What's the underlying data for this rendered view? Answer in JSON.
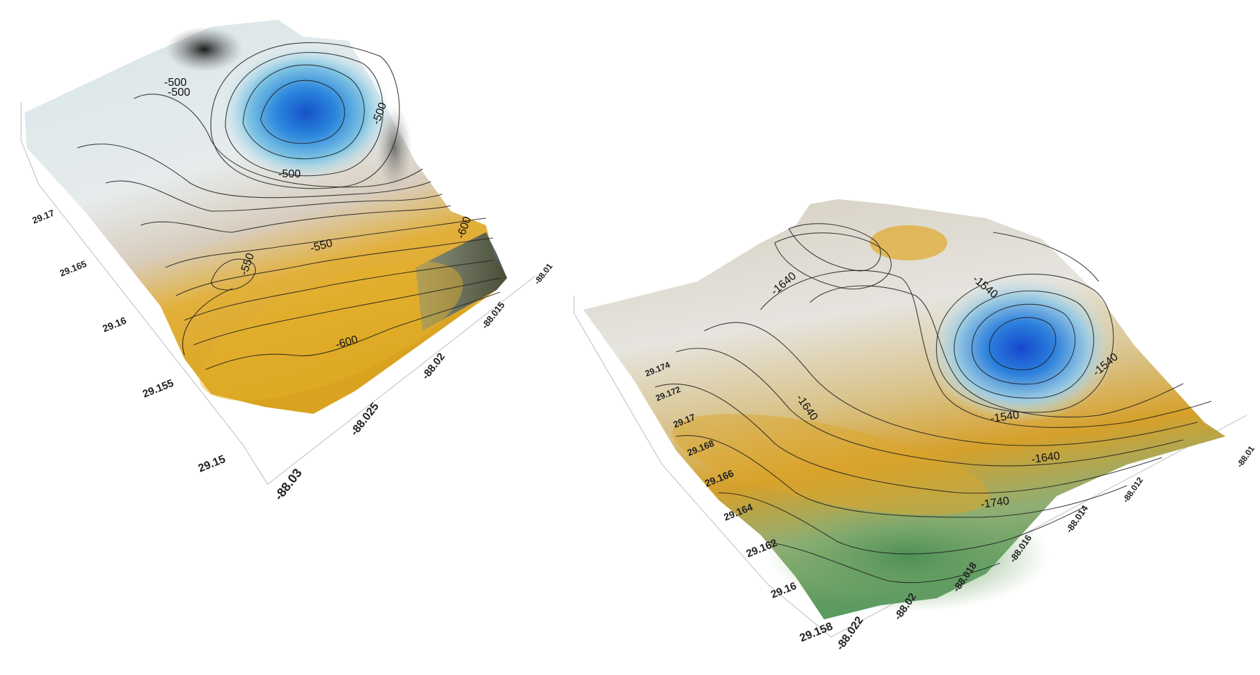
{
  "surfaces": [
    {
      "id": "left",
      "lat_ticks": [
        "29.17",
        "29.165",
        "29.16",
        "29.155",
        "29.15"
      ],
      "lon_ticks": [
        "-88.03",
        "-88.025",
        "-88.02",
        "-88.015",
        "-88.01"
      ],
      "contour_labels": [
        "-500",
        "-500",
        "-500",
        "-500",
        "-550",
        "-550",
        "-600",
        "-600"
      ],
      "colors": {
        "high": "#1f6fd6",
        "mid": "#dfe7ea",
        "low": "#e0a91c"
      }
    },
    {
      "id": "right",
      "lat_ticks": [
        "29.174",
        "29.172",
        "29.17",
        "29.168",
        "29.166",
        "29.164",
        "29.162",
        "29.16",
        "29.158"
      ],
      "lon_ticks": [
        "-88.022",
        "-88.02",
        "-88.018",
        "-88.016",
        "-88.014",
        "-88.012",
        "-88.01"
      ],
      "contour_labels": [
        "-1640",
        "-1540",
        "-1640",
        "-1540",
        "-1540",
        "-1640",
        "-1740"
      ],
      "colors": {
        "high": "#1a63d8",
        "mid": "#e3e7e6",
        "low": "#d9a429",
        "deep": "#5a9a5f"
      }
    }
  ]
}
